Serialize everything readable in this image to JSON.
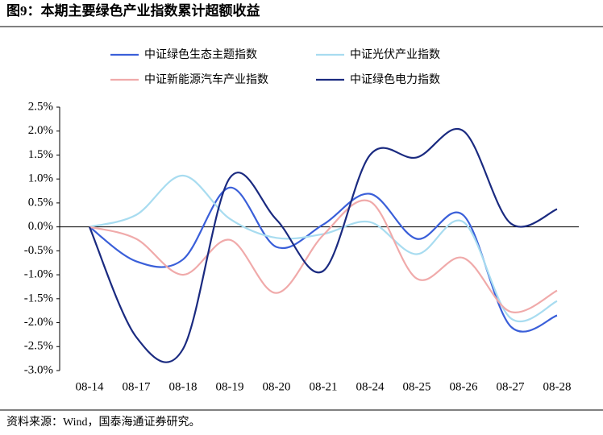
{
  "chart_data": {
    "type": "line",
    "title": "图9：本期主要绿色产业指数累计超额收益",
    "source": "资料来源：Wind，国泰海通证券研究。",
    "categories": [
      "08-14",
      "08-17",
      "08-18",
      "08-19",
      "08-20",
      "08-21",
      "08-24",
      "08-25",
      "08-26",
      "08-27",
      "08-28"
    ],
    "series": [
      {
        "name": "中证绿色生态主题指数",
        "color": "#3a5fd9",
        "values": [
          0,
          -0.72,
          -0.68,
          0.82,
          -0.42,
          0.05,
          0.69,
          -0.25,
          0.24,
          -2.07,
          -1.85
        ]
      },
      {
        "name": "中证光伏产业指数",
        "color": "#a8dcf0",
        "values": [
          0,
          0.25,
          1.07,
          0.17,
          -0.23,
          -0.15,
          0.1,
          -0.57,
          0.1,
          -1.9,
          -1.55
        ]
      },
      {
        "name": "中证新能源汽车产业指数",
        "color": "#f0aaaa",
        "values": [
          0,
          -0.25,
          -1.0,
          -0.27,
          -1.38,
          -0.17,
          0.53,
          -1.08,
          -0.65,
          -1.77,
          -1.33
        ]
      },
      {
        "name": "中证绿色电力指数",
        "color": "#1a2a80",
        "values": [
          0,
          -2.3,
          -2.55,
          1.02,
          0.15,
          -0.92,
          1.5,
          1.45,
          2.0,
          0.08,
          0.37
        ]
      }
    ],
    "ylim": [
      -3.0,
      2.5
    ],
    "yticks": [
      {
        "value": 2.5,
        "label": "2.5%"
      },
      {
        "value": 2.0,
        "label": "2.0%"
      },
      {
        "value": 1.5,
        "label": "1.5%"
      },
      {
        "value": 1.0,
        "label": "1.0%"
      },
      {
        "value": 0.5,
        "label": "0.5%"
      },
      {
        "value": 0,
        "label": "0.0%"
      },
      {
        "value": -0.5,
        "label": "-0.5%"
      },
      {
        "value": -1.0,
        "label": "-1.0%"
      },
      {
        "value": -1.5,
        "label": "-1.5%"
      },
      {
        "value": -2.0,
        "label": "-2.0%"
      },
      {
        "value": -2.5,
        "label": "-2.5%"
      },
      {
        "value": -3.0,
        "label": "-3.0%"
      }
    ],
    "grid": false
  }
}
